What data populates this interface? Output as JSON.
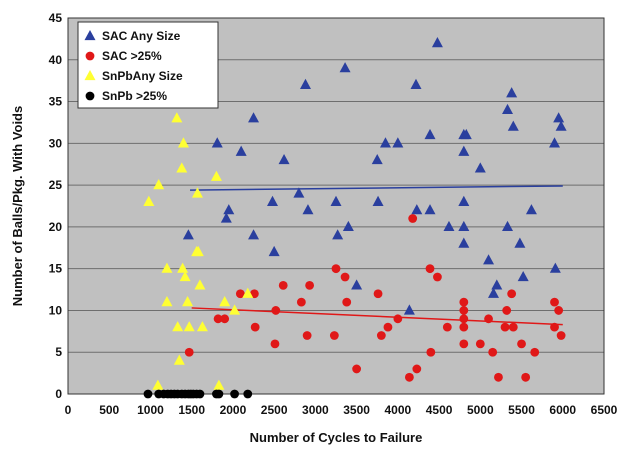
{
  "chart_data": {
    "type": "scatter",
    "xlabel": "Number of Cycles to Failure",
    "ylabel": "Number of Balls/Pkg. With Voids",
    "xlim": [
      0,
      6500
    ],
    "ylim": [
      0,
      45
    ],
    "xticks": [
      0,
      500,
      1000,
      1500,
      2000,
      2500,
      3000,
      3500,
      4000,
      4500,
      5000,
      5500,
      6000,
      6500
    ],
    "yticks": [
      0,
      5,
      10,
      15,
      20,
      25,
      30,
      35,
      40,
      45
    ],
    "grid": true,
    "plot_background": "#c0c0c0",
    "legend_position": "top-left",
    "series": [
      {
        "name": "SAC Any Size",
        "marker": "triangle",
        "color": "#2a3f9e",
        "points": [
          [
            1460,
            19
          ],
          [
            1810,
            30
          ],
          [
            1920,
            21
          ],
          [
            1950,
            22
          ],
          [
            2100,
            29
          ],
          [
            2250,
            33
          ],
          [
            2250,
            19
          ],
          [
            2480,
            23
          ],
          [
            2500,
            17
          ],
          [
            2620,
            28
          ],
          [
            2800,
            24
          ],
          [
            2880,
            37
          ],
          [
            2910,
            22
          ],
          [
            3250,
            23
          ],
          [
            3270,
            19
          ],
          [
            3360,
            39
          ],
          [
            3400,
            20
          ],
          [
            3500,
            13
          ],
          [
            3750,
            28
          ],
          [
            3760,
            23
          ],
          [
            3850,
            30
          ],
          [
            4000,
            30
          ],
          [
            4140,
            10
          ],
          [
            4220,
            37
          ],
          [
            4230,
            22
          ],
          [
            4390,
            31
          ],
          [
            4390,
            22
          ],
          [
            4480,
            42
          ],
          [
            4620,
            20
          ],
          [
            4800,
            31
          ],
          [
            4800,
            29
          ],
          [
            4800,
            23
          ],
          [
            4800,
            20
          ],
          [
            4800,
            18
          ],
          [
            4830,
            31
          ],
          [
            5000,
            27
          ],
          [
            5100,
            16
          ],
          [
            5160,
            12
          ],
          [
            5200,
            13
          ],
          [
            5330,
            34
          ],
          [
            5330,
            20
          ],
          [
            5380,
            36
          ],
          [
            5400,
            32
          ],
          [
            5480,
            18
          ],
          [
            5520,
            14
          ],
          [
            5620,
            22
          ],
          [
            5900,
            30
          ],
          [
            5910,
            15
          ],
          [
            5950,
            33
          ],
          [
            5980,
            32
          ]
        ]
      },
      {
        "name": "SAC >25%",
        "marker": "circle",
        "color": "#e01818",
        "points": [
          [
            1470,
            5
          ],
          [
            1820,
            9
          ],
          [
            1900,
            9
          ],
          [
            2090,
            12
          ],
          [
            2260,
            12
          ],
          [
            2270,
            8
          ],
          [
            2510,
            6
          ],
          [
            2520,
            10
          ],
          [
            2610,
            13
          ],
          [
            2830,
            11
          ],
          [
            2900,
            7
          ],
          [
            2930,
            13
          ],
          [
            3230,
            7
          ],
          [
            3250,
            15
          ],
          [
            3360,
            14
          ],
          [
            3380,
            11
          ],
          [
            3500,
            3
          ],
          [
            3760,
            12
          ],
          [
            3800,
            7
          ],
          [
            3880,
            8
          ],
          [
            4000,
            9
          ],
          [
            4140,
            2
          ],
          [
            4180,
            21
          ],
          [
            4230,
            3
          ],
          [
            4390,
            15
          ],
          [
            4400,
            5
          ],
          [
            4480,
            14
          ],
          [
            4600,
            8
          ],
          [
            4800,
            11
          ],
          [
            4800,
            10
          ],
          [
            4800,
            9
          ],
          [
            4800,
            8
          ],
          [
            4800,
            6
          ],
          [
            5000,
            6
          ],
          [
            5100,
            9
          ],
          [
            5150,
            5
          ],
          [
            5220,
            2
          ],
          [
            5300,
            8
          ],
          [
            5320,
            10
          ],
          [
            5380,
            12
          ],
          [
            5400,
            8
          ],
          [
            5500,
            6
          ],
          [
            5550,
            2
          ],
          [
            5660,
            5
          ],
          [
            5900,
            11
          ],
          [
            5900,
            8
          ],
          [
            5950,
            10
          ],
          [
            5980,
            7
          ]
        ]
      },
      {
        "name": "SnPbAny Size",
        "marker": "triangle",
        "color": "#ffff33",
        "points": [
          [
            980,
            23
          ],
          [
            1090,
            1
          ],
          [
            1100,
            25
          ],
          [
            1200,
            11
          ],
          [
            1200,
            15
          ],
          [
            1320,
            33
          ],
          [
            1330,
            8
          ],
          [
            1350,
            4
          ],
          [
            1380,
            27
          ],
          [
            1390,
            15
          ],
          [
            1400,
            30
          ],
          [
            1420,
            14
          ],
          [
            1450,
            11
          ],
          [
            1470,
            8
          ],
          [
            1560,
            17
          ],
          [
            1570,
            24
          ],
          [
            1580,
            17
          ],
          [
            1600,
            13
          ],
          [
            1630,
            8
          ],
          [
            1800,
            26
          ],
          [
            1830,
            1
          ],
          [
            1900,
            11
          ],
          [
            2020,
            10
          ],
          [
            2180,
            12
          ]
        ]
      },
      {
        "name": "SnPb >25%",
        "marker": "circle",
        "color": "#000000",
        "points": [
          [
            970,
            0
          ],
          [
            1100,
            0
          ],
          [
            1160,
            0
          ],
          [
            1210,
            0
          ],
          [
            1250,
            0
          ],
          [
            1290,
            0
          ],
          [
            1330,
            0
          ],
          [
            1380,
            0
          ],
          [
            1420,
            0
          ],
          [
            1460,
            0
          ],
          [
            1490,
            0
          ],
          [
            1520,
            0
          ],
          [
            1560,
            0
          ],
          [
            1600,
            0
          ],
          [
            1800,
            0
          ],
          [
            1830,
            0
          ],
          [
            2020,
            0
          ],
          [
            2180,
            0
          ]
        ]
      }
    ],
    "trendlines": [
      {
        "series": "SAC Any Size",
        "color": "#2a3f9e",
        "from": [
          1480,
          24.4
        ],
        "to": [
          6000,
          24.9
        ]
      },
      {
        "series": "SAC >25%",
        "color": "#e01818",
        "from": [
          1500,
          10.3
        ],
        "to": [
          6000,
          8.3
        ]
      }
    ]
  }
}
